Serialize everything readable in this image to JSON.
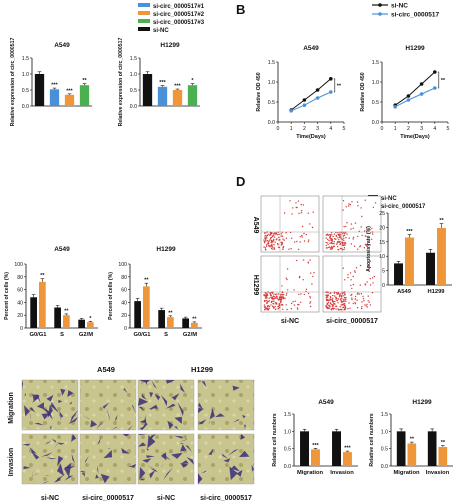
{
  "panel_labels": [
    "B",
    "D"
  ],
  "colors": {
    "black": "#111111",
    "blue": "#4a90d9",
    "orange": "#f0963a",
    "green": "#4caf50",
    "grey": "#555555"
  },
  "top_legend": [
    {
      "label": "si-circ_0000517#1",
      "color": "#4a90d9"
    },
    {
      "label": "si-circ_0000517#2",
      "color": "#f0963a"
    },
    {
      "label": "si-circ_0000517#3",
      "color": "#4caf50"
    },
    {
      "label": "si-NC",
      "color": "#111111"
    }
  ],
  "cck8_legend": [
    {
      "label": "si-NC",
      "color": "#111111"
    },
    {
      "label": "si-circ_0000517",
      "color": "#4a90d9"
    }
  ],
  "apop_legend": [
    {
      "label": "si-NC",
      "color": "#111111"
    },
    {
      "label": "si-circ_0000517",
      "color": "#f0963a"
    }
  ],
  "flow": {
    "row_labels": [
      "A549",
      "H1299"
    ],
    "col_labels": [
      "si-NC",
      "si-circ_0000517"
    ]
  },
  "transwell": {
    "col_titles": [
      "A549",
      "H1299"
    ],
    "row_labels": [
      "Migration",
      "Invasion"
    ],
    "bottom_labels": [
      "si-NC",
      "si-circ_0000517",
      "si-NC",
      "si-circ_0000517"
    ]
  },
  "chart_data": [
    {
      "id": "expr-a549",
      "type": "bar",
      "title": "A549",
      "ylabel": "Relative expression of circ_0000517",
      "ylim": [
        0,
        1.5
      ],
      "yticks": [
        "0.0",
        "0.5",
        "1.0",
        "1.5"
      ],
      "values": [
        1.0,
        0.52,
        0.35,
        0.65
      ],
      "errors": [
        0.07,
        0.04,
        0.03,
        0.05
      ],
      "sig": [
        "",
        "***",
        "***",
        "**"
      ],
      "colors": [
        "#111111",
        "#4a90d9",
        "#f0963a",
        "#4caf50"
      ]
    },
    {
      "id": "expr-h1299",
      "type": "bar",
      "title": "H1299",
      "ylabel": "Relative expression of circ_0000517",
      "ylim": [
        0,
        1.5
      ],
      "yticks": [
        "0.0",
        "0.5",
        "1.0",
        "1.5"
      ],
      "values": [
        1.0,
        0.6,
        0.5,
        0.65
      ],
      "errors": [
        0.07,
        0.04,
        0.03,
        0.05
      ],
      "sig": [
        "",
        "***",
        "***",
        "*"
      ],
      "colors": [
        "#111111",
        "#4a90d9",
        "#f0963a",
        "#4caf50"
      ]
    },
    {
      "id": "cck8-a549",
      "type": "line",
      "title": "A549",
      "xlabel": "Time(Days)",
      "ylabel": "Relative OD 450",
      "xlim": [
        0,
        5
      ],
      "ylim": [
        0,
        1.5
      ],
      "xticks": [
        "0",
        "1",
        "2",
        "3",
        "4",
        "5"
      ],
      "yticks": [
        "0.0",
        "0.5",
        "1.0",
        "1.5"
      ],
      "series": [
        {
          "x": [
            1,
            2,
            3,
            4
          ],
          "y": [
            0.3,
            0.55,
            0.8,
            1.08
          ],
          "color": "#111111"
        },
        {
          "x": [
            1,
            2,
            3,
            4
          ],
          "y": [
            0.28,
            0.42,
            0.6,
            0.75
          ],
          "color": "#4a90d9"
        }
      ],
      "sig": "**"
    },
    {
      "id": "cck8-h1299",
      "type": "line",
      "title": "H1299",
      "xlabel": "Time(Days)",
      "ylabel": "Relative OD 450",
      "xlim": [
        0,
        5
      ],
      "ylim": [
        0,
        1.5
      ],
      "xticks": [
        "0",
        "1",
        "2",
        "3",
        "4",
        "5"
      ],
      "yticks": [
        "0.0",
        "0.5",
        "1.0",
        "1.5"
      ],
      "series": [
        {
          "x": [
            1,
            2,
            3,
            4
          ],
          "y": [
            0.42,
            0.65,
            0.95,
            1.25
          ],
          "color": "#111111"
        },
        {
          "x": [
            1,
            2,
            3,
            4
          ],
          "y": [
            0.38,
            0.55,
            0.7,
            0.85
          ],
          "color": "#4a90d9"
        }
      ],
      "sig": "**"
    },
    {
      "id": "apop",
      "type": "bar",
      "ylabel": "Apoptosis rate (%)",
      "ylim": [
        0,
        25
      ],
      "yticks": [
        "0",
        "5",
        "10",
        "15",
        "20",
        "25"
      ],
      "categories": [
        "A549",
        "H1299"
      ],
      "values": [
        [
          7.5,
          16.5
        ],
        [
          11.2,
          19.8
        ]
      ],
      "errors": [
        [
          0.7,
          1.0
        ],
        [
          1.2,
          1.5
        ]
      ],
      "sig": [
        [
          "",
          "***"
        ],
        [
          "",
          "**"
        ]
      ],
      "colors": [
        "#111111",
        "#f0963a"
      ]
    },
    {
      "id": "cycle-a549",
      "type": "bar",
      "title": "A549",
      "ylabel": "Percent of cells (%)",
      "ylim": [
        0,
        100
      ],
      "yticks": [
        "0",
        "20",
        "40",
        "60",
        "80",
        "100"
      ],
      "categories": [
        "G0/G1",
        "S",
        "G2/M"
      ],
      "values": [
        [
          48,
          72
        ],
        [
          32,
          20
        ],
        [
          13,
          9
        ]
      ],
      "errors": [
        [
          4,
          5
        ],
        [
          3,
          2
        ],
        [
          2,
          1.5
        ]
      ],
      "sig": [
        [
          "",
          "**"
        ],
        [
          "",
          "**"
        ],
        [
          "",
          "*"
        ]
      ],
      "colors": [
        "#111111",
        "#f0963a"
      ]
    },
    {
      "id": "cycle-h1299",
      "type": "bar",
      "title": "H1299",
      "ylabel": "Percent of cells (%)",
      "ylim": [
        0,
        100
      ],
      "yticks": [
        "0",
        "20",
        "40",
        "60",
        "80",
        "100"
      ],
      "categories": [
        "G0/G1",
        "S",
        "G2/M"
      ],
      "values": [
        [
          42,
          65
        ],
        [
          28,
          17
        ],
        [
          15,
          8
        ]
      ],
      "errors": [
        [
          4,
          5
        ],
        [
          3,
          2
        ],
        [
          2,
          1.5
        ]
      ],
      "sig": [
        [
          "",
          "**"
        ],
        [
          "",
          "**"
        ],
        [
          "",
          "**"
        ]
      ],
      "colors": [
        "#111111",
        "#f0963a"
      ]
    },
    {
      "id": "tw-a549",
      "type": "bar",
      "title": "A549",
      "ylabel": "Relative cell numbers",
      "ylim": [
        0,
        1.5
      ],
      "yticks": [
        "0.0",
        "0.5",
        "1.0",
        "1.5"
      ],
      "categories": [
        "Migration",
        "Invasion"
      ],
      "values": [
        [
          1.0,
          0.48
        ],
        [
          1.0,
          0.4
        ]
      ],
      "errors": [
        [
          0.06,
          0.03
        ],
        [
          0.06,
          0.03
        ]
      ],
      "sig": [
        [
          "",
          "***"
        ],
        [
          "",
          "***"
        ]
      ],
      "colors": [
        "#111111",
        "#f0963a"
      ]
    },
    {
      "id": "tw-h1299",
      "type": "bar",
      "title": "H1299",
      "ylabel": "Relative cell numbers",
      "ylim": [
        0,
        1.5
      ],
      "yticks": [
        "0.0",
        "0.5",
        "1.0",
        "1.5"
      ],
      "categories": [
        "Migration",
        "Invasion"
      ],
      "values": [
        [
          1.0,
          0.65
        ],
        [
          1.0,
          0.55
        ]
      ],
      "errors": [
        [
          0.07,
          0.04
        ],
        [
          0.07,
          0.04
        ]
      ],
      "sig": [
        [
          "",
          "**"
        ],
        [
          "",
          "**"
        ]
      ],
      "colors": [
        "#111111",
        "#f0963a"
      ]
    }
  ]
}
